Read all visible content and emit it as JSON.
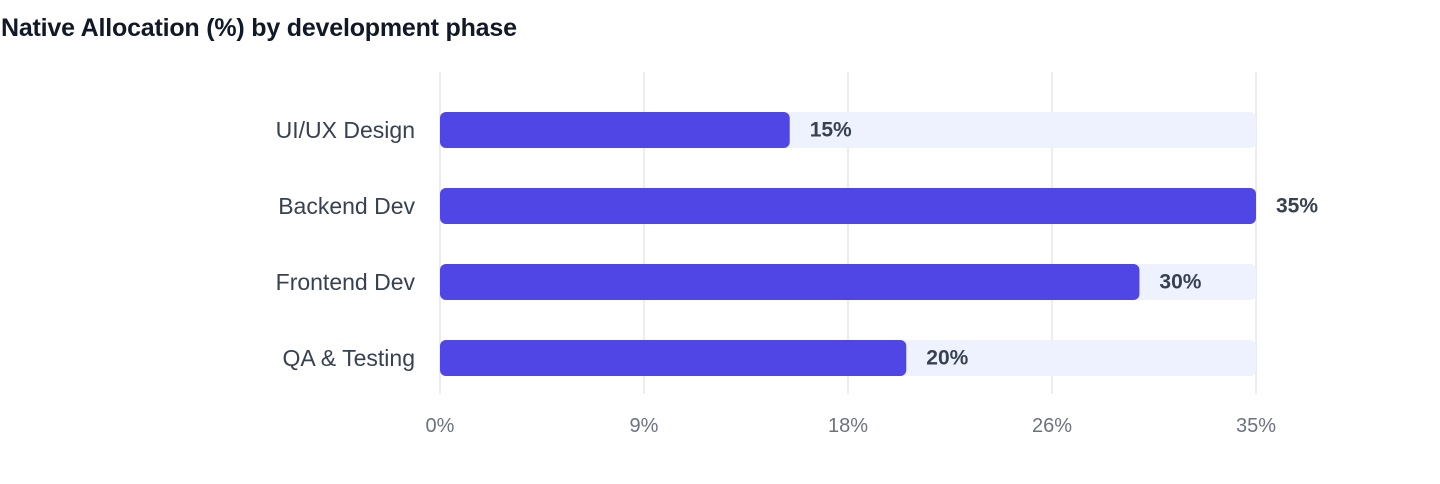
{
  "chart_data": {
    "type": "bar",
    "orientation": "horizontal",
    "title": "Native Allocation (%) by development phase",
    "categories": [
      "UI/UX Design",
      "Backend Dev",
      "Frontend Dev",
      "QA & Testing"
    ],
    "values": [
      15,
      35,
      30,
      20
    ],
    "value_labels": [
      "15%",
      "35%",
      "30%",
      "20%"
    ],
    "xlim": [
      0,
      35
    ],
    "xticks": [
      0,
      8.75,
      17.5,
      26.25,
      35
    ],
    "xtick_labels": [
      "0%",
      "9%",
      "18%",
      "26%",
      "35%"
    ],
    "grid": true,
    "legend": "none",
    "colors": {
      "bar": "#4f46e5",
      "track": "#eef2ff",
      "grid": "#e5e7eb",
      "title": "#111827",
      "label": "#374151",
      "tick": "#6b7280"
    }
  }
}
